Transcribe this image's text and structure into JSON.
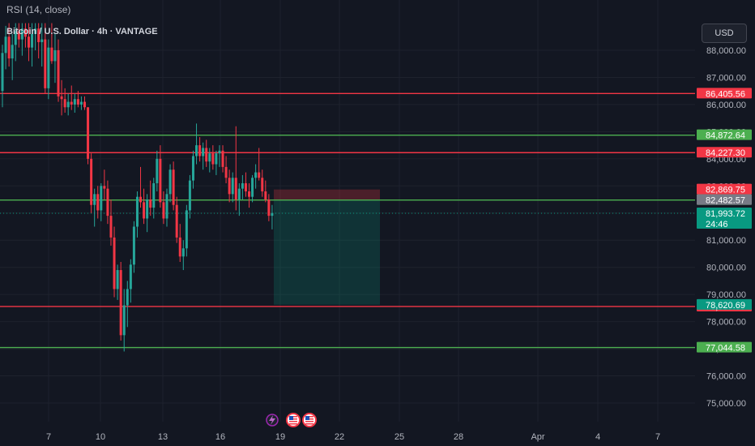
{
  "header": {
    "indicator": "RSI (14, close)",
    "symbol": "Bitcoin / U.S. Dollar · 4h · VANTAGE",
    "currency": "USD"
  },
  "countdown": "24:46",
  "colors": {
    "up": "#26a69a",
    "down": "#f23645",
    "support_line": "#4caf50",
    "resistance_line": "#f23645",
    "background": "#131722",
    "grid": "#1e222d"
  },
  "chart_data": {
    "type": "candlestick",
    "y_range": [
      74400,
      89000
    ],
    "y_ticks": [
      75000,
      76000,
      77000,
      78000,
      79000,
      80000,
      81000,
      82000,
      83000,
      84000,
      85000,
      86000,
      87000,
      88000
    ],
    "y_tick_labels": [
      "75,000.00",
      "76,000.00",
      "77,000.00",
      "78,000.00",
      "79,000.00",
      "80,000.00",
      "81,000.00",
      "82,000.00",
      "83,000.00",
      "84,000.00",
      "85,000.00",
      "86,000.00",
      "87,000.00",
      "88,000.00"
    ],
    "x_ticks": [
      "7",
      "10",
      "13",
      "16",
      "19",
      "22",
      "25",
      "28",
      "Apr",
      "4",
      "7"
    ],
    "horizontal_lines": [
      {
        "value": 86405.56,
        "label": "86,405.56",
        "color": "#f23645"
      },
      {
        "value": 84872.64,
        "label": "84,872.64",
        "color": "#4caf50"
      },
      {
        "value": 84227.3,
        "label": "84,227.30",
        "color": "#f23645"
      },
      {
        "value": 82481.3,
        "label": "82,481.30",
        "color": "#4caf50"
      },
      {
        "value": 78557.05,
        "label": "78,557.05",
        "color": "#f23645"
      },
      {
        "value": 77044.58,
        "label": "77,044.58",
        "color": "#4caf50"
      }
    ],
    "price_labels": [
      {
        "value": 82869.75,
        "label": "82,869.75",
        "color": "#f23645"
      },
      {
        "value": 82482.57,
        "label": "82,482.57",
        "color": "#787b86"
      },
      {
        "value": 81993.72,
        "label": "81,993.72",
        "color": "#089981"
      },
      {
        "value": 78620.69,
        "label": "78,620.69",
        "color": "#089981"
      }
    ],
    "current_price": 81993.72,
    "position": {
      "entry": 82481.3,
      "stop": 82869.75,
      "target": 78620.69,
      "start_index": 82.5,
      "end_index": 119
    },
    "ohlc": [
      [
        86500,
        88200,
        85900,
        87900
      ],
      [
        87900,
        88900,
        87300,
        88500
      ],
      [
        88500,
        89000,
        87400,
        87700
      ],
      [
        87700,
        88600,
        86900,
        88200
      ],
      [
        88200,
        89000,
        87600,
        88700
      ],
      [
        88700,
        89000,
        88100,
        88400
      ],
      [
        88400,
        89000,
        87800,
        88800
      ],
      [
        88800,
        89000,
        88100,
        88500
      ],
      [
        88500,
        89000,
        87600,
        88100
      ],
      [
        88100,
        89000,
        87400,
        88600
      ],
      [
        88600,
        89000,
        88000,
        88800
      ],
      [
        88800,
        89000,
        87700,
        88300
      ],
      [
        88300,
        89000,
        87400,
        88400
      ],
      [
        88400,
        89000,
        86400,
        86600
      ],
      [
        86600,
        88400,
        86200,
        88100
      ],
      [
        88100,
        89000,
        87500,
        87600
      ],
      [
        87600,
        88600,
        86800,
        88000
      ],
      [
        88000,
        88400,
        86100,
        86300
      ],
      [
        86300,
        86900,
        85600,
        86200
      ],
      [
        86200,
        86600,
        85700,
        85900
      ],
      [
        85900,
        86400,
        85600,
        86100
      ],
      [
        86100,
        86700,
        85800,
        86000
      ],
      [
        86000,
        86400,
        85700,
        86200
      ],
      [
        86200,
        86500,
        85900,
        86000
      ],
      [
        86000,
        86300,
        85800,
        86100
      ],
      [
        86100,
        86300,
        85800,
        85900
      ],
      [
        85900,
        85900,
        83800,
        84000
      ],
      [
        84000,
        84200,
        82000,
        82300
      ],
      [
        82300,
        82900,
        81500,
        82700
      ],
      [
        82700,
        83000,
        81800,
        82100
      ],
      [
        82100,
        83100,
        81700,
        83000
      ],
      [
        83000,
        83600,
        82500,
        82900
      ],
      [
        82900,
        83200,
        81600,
        81900
      ],
      [
        81900,
        82500,
        80800,
        81100
      ],
      [
        81100,
        81500,
        78900,
        79200
      ],
      [
        79200,
        80100,
        78800,
        79900
      ],
      [
        79900,
        80200,
        77300,
        77500
      ],
      [
        77500,
        79200,
        76900,
        78600
      ],
      [
        78600,
        79500,
        77800,
        79200
      ],
      [
        79200,
        80300,
        78700,
        80100
      ],
      [
        80100,
        81700,
        79800,
        81500
      ],
      [
        81500,
        82800,
        81100,
        82600
      ],
      [
        82600,
        83700,
        82200,
        82400
      ],
      [
        82400,
        82900,
        81600,
        81800
      ],
      [
        81800,
        82700,
        81300,
        82500
      ],
      [
        82500,
        83200,
        81900,
        82200
      ],
      [
        82200,
        83300,
        81800,
        83100
      ],
      [
        83100,
        84300,
        82800,
        84000
      ],
      [
        84000,
        84500,
        82200,
        82400
      ],
      [
        82400,
        82800,
        81600,
        81800
      ],
      [
        81800,
        82900,
        81500,
        82700
      ],
      [
        82700,
        83800,
        82400,
        83600
      ],
      [
        83600,
        83900,
        82100,
        82300
      ],
      [
        82300,
        82600,
        80900,
        81100
      ],
      [
        81100,
        81600,
        80200,
        80400
      ],
      [
        80400,
        81000,
        79900,
        80700
      ],
      [
        80700,
        82300,
        80400,
        82100
      ],
      [
        82100,
        83400,
        81800,
        83200
      ],
      [
        83200,
        84300,
        82900,
        84100
      ],
      [
        84100,
        85300,
        83800,
        84500
      ],
      [
        84500,
        84800,
        83900,
        84100
      ],
      [
        84100,
        84600,
        83600,
        84400
      ],
      [
        84400,
        84700,
        83700,
        83900
      ],
      [
        83900,
        84400,
        83500,
        84200
      ],
      [
        84200,
        84500,
        83600,
        83800
      ],
      [
        83800,
        84300,
        83400,
        84200
      ],
      [
        84200,
        84500,
        83700,
        84300
      ],
      [
        84300,
        84500,
        83500,
        83700
      ],
      [
        83700,
        84100,
        83100,
        83300
      ],
      [
        83300,
        83600,
        82400,
        82700
      ],
      [
        82700,
        83500,
        82400,
        83300
      ],
      [
        83300,
        85200,
        82100,
        82500
      ],
      [
        82500,
        83100,
        81900,
        82900
      ],
      [
        82900,
        83400,
        82500,
        83100
      ],
      [
        83100,
        83500,
        82600,
        82800
      ],
      [
        82800,
        83100,
        82200,
        82600
      ],
      [
        82600,
        83400,
        82400,
        83300
      ],
      [
        83300,
        83800,
        82900,
        83500
      ],
      [
        83500,
        84400,
        83200,
        83300
      ],
      [
        83300,
        83600,
        82600,
        82800
      ],
      [
        82800,
        83200,
        82400,
        82500
      ],
      [
        82500,
        82700,
        81700,
        81900
      ],
      [
        81900,
        82300,
        81400,
        82000
      ]
    ]
  }
}
